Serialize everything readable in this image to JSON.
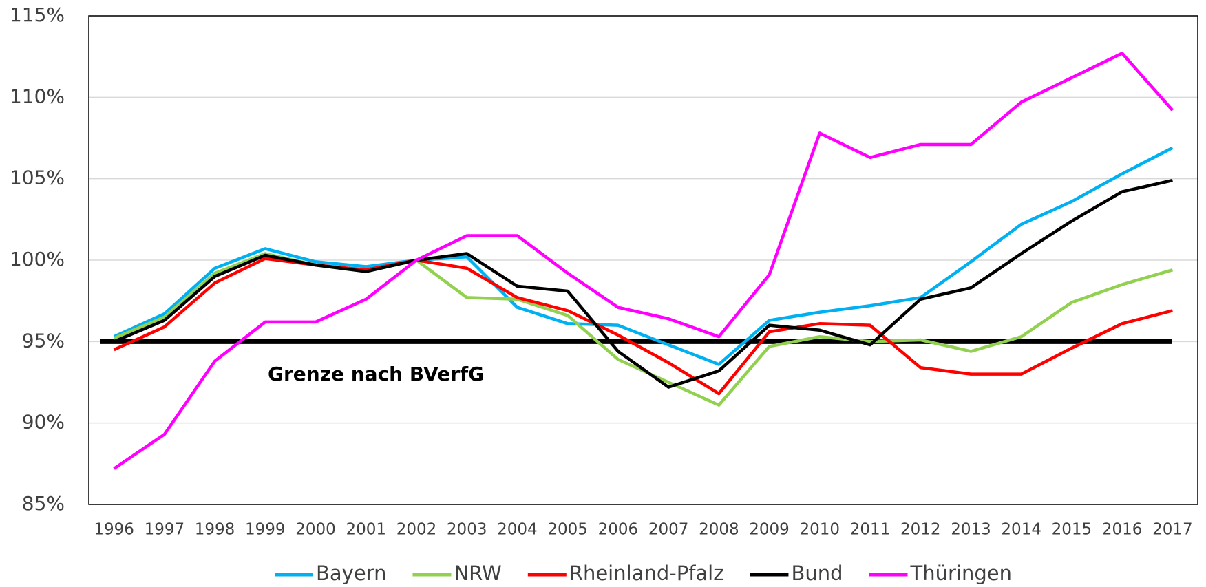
{
  "chart_data": {
    "type": "line",
    "categories": [
      "1996",
      "1997",
      "1998",
      "1999",
      "2000",
      "2001",
      "2002",
      "2003",
      "2004",
      "2005",
      "2006",
      "2007",
      "2008",
      "2009",
      "2010",
      "2011",
      "2012",
      "2013",
      "2014",
      "2015",
      "2016",
      "2017"
    ],
    "series": [
      {
        "name": "Bayern",
        "color": "#00b0f0",
        "values": [
          95.3,
          96.7,
          99.5,
          100.7,
          99.9,
          99.6,
          100,
          100.2,
          97.1,
          96.1,
          96.0,
          94.8,
          93.6,
          96.3,
          96.8,
          97.2,
          97.7,
          99.9,
          102.2,
          103.6,
          105.3,
          106.9
        ]
      },
      {
        "name": "NRW",
        "color": "#92d050",
        "values": [
          95.2,
          96.5,
          99.2,
          100.4,
          99.7,
          99.3,
          100,
          97.7,
          97.6,
          96.6,
          93.9,
          92.5,
          91.1,
          94.7,
          95.3,
          95.0,
          95.1,
          94.4,
          95.3,
          97.4,
          98.5,
          99.4
        ]
      },
      {
        "name": "Rheinland-Pfalz",
        "color": "#ff0000",
        "values": [
          94.5,
          95.9,
          98.6,
          100.1,
          99.7,
          99.4,
          100,
          99.5,
          97.7,
          96.9,
          95.4,
          93.7,
          91.8,
          95.6,
          96.1,
          96.0,
          93.4,
          93.0,
          93.0,
          94.6,
          96.1,
          96.9
        ]
      },
      {
        "name": "Bund",
        "color": "#000000",
        "values": [
          95.0,
          96.3,
          99.0,
          100.3,
          99.7,
          99.3,
          100,
          100.4,
          98.4,
          98.1,
          94.4,
          92.2,
          93.2,
          96.0,
          95.7,
          94.8,
          97.6,
          98.3,
          100.4,
          102.4,
          104.2,
          104.9
        ]
      },
      {
        "name": "Thüringen",
        "color": "#ff00ff",
        "values": [
          87.2,
          89.3,
          93.8,
          96.2,
          96.2,
          97.6,
          100,
          101.5,
          101.5,
          99.2,
          97.1,
          96.4,
          95.3,
          99.1,
          107.8,
          106.3,
          107.1,
          107.1,
          109.7,
          111.2,
          112.7,
          109.2
        ]
      }
    ],
    "reference_line": {
      "value": 95,
      "label": "Grenze nach BVerfG",
      "color": "#000000"
    },
    "ylim": [
      85,
      115
    ],
    "yticks": [
      {
        "value": 85,
        "label": "85%"
      },
      {
        "value": 90,
        "label": "90%"
      },
      {
        "value": 95,
        "label": "95%"
      },
      {
        "value": 100,
        "label": "100%"
      },
      {
        "value": 105,
        "label": "105%"
      },
      {
        "value": 110,
        "label": "110%"
      },
      {
        "value": 115,
        "label": "115%"
      }
    ],
    "grid": true,
    "legend": "bottom"
  }
}
